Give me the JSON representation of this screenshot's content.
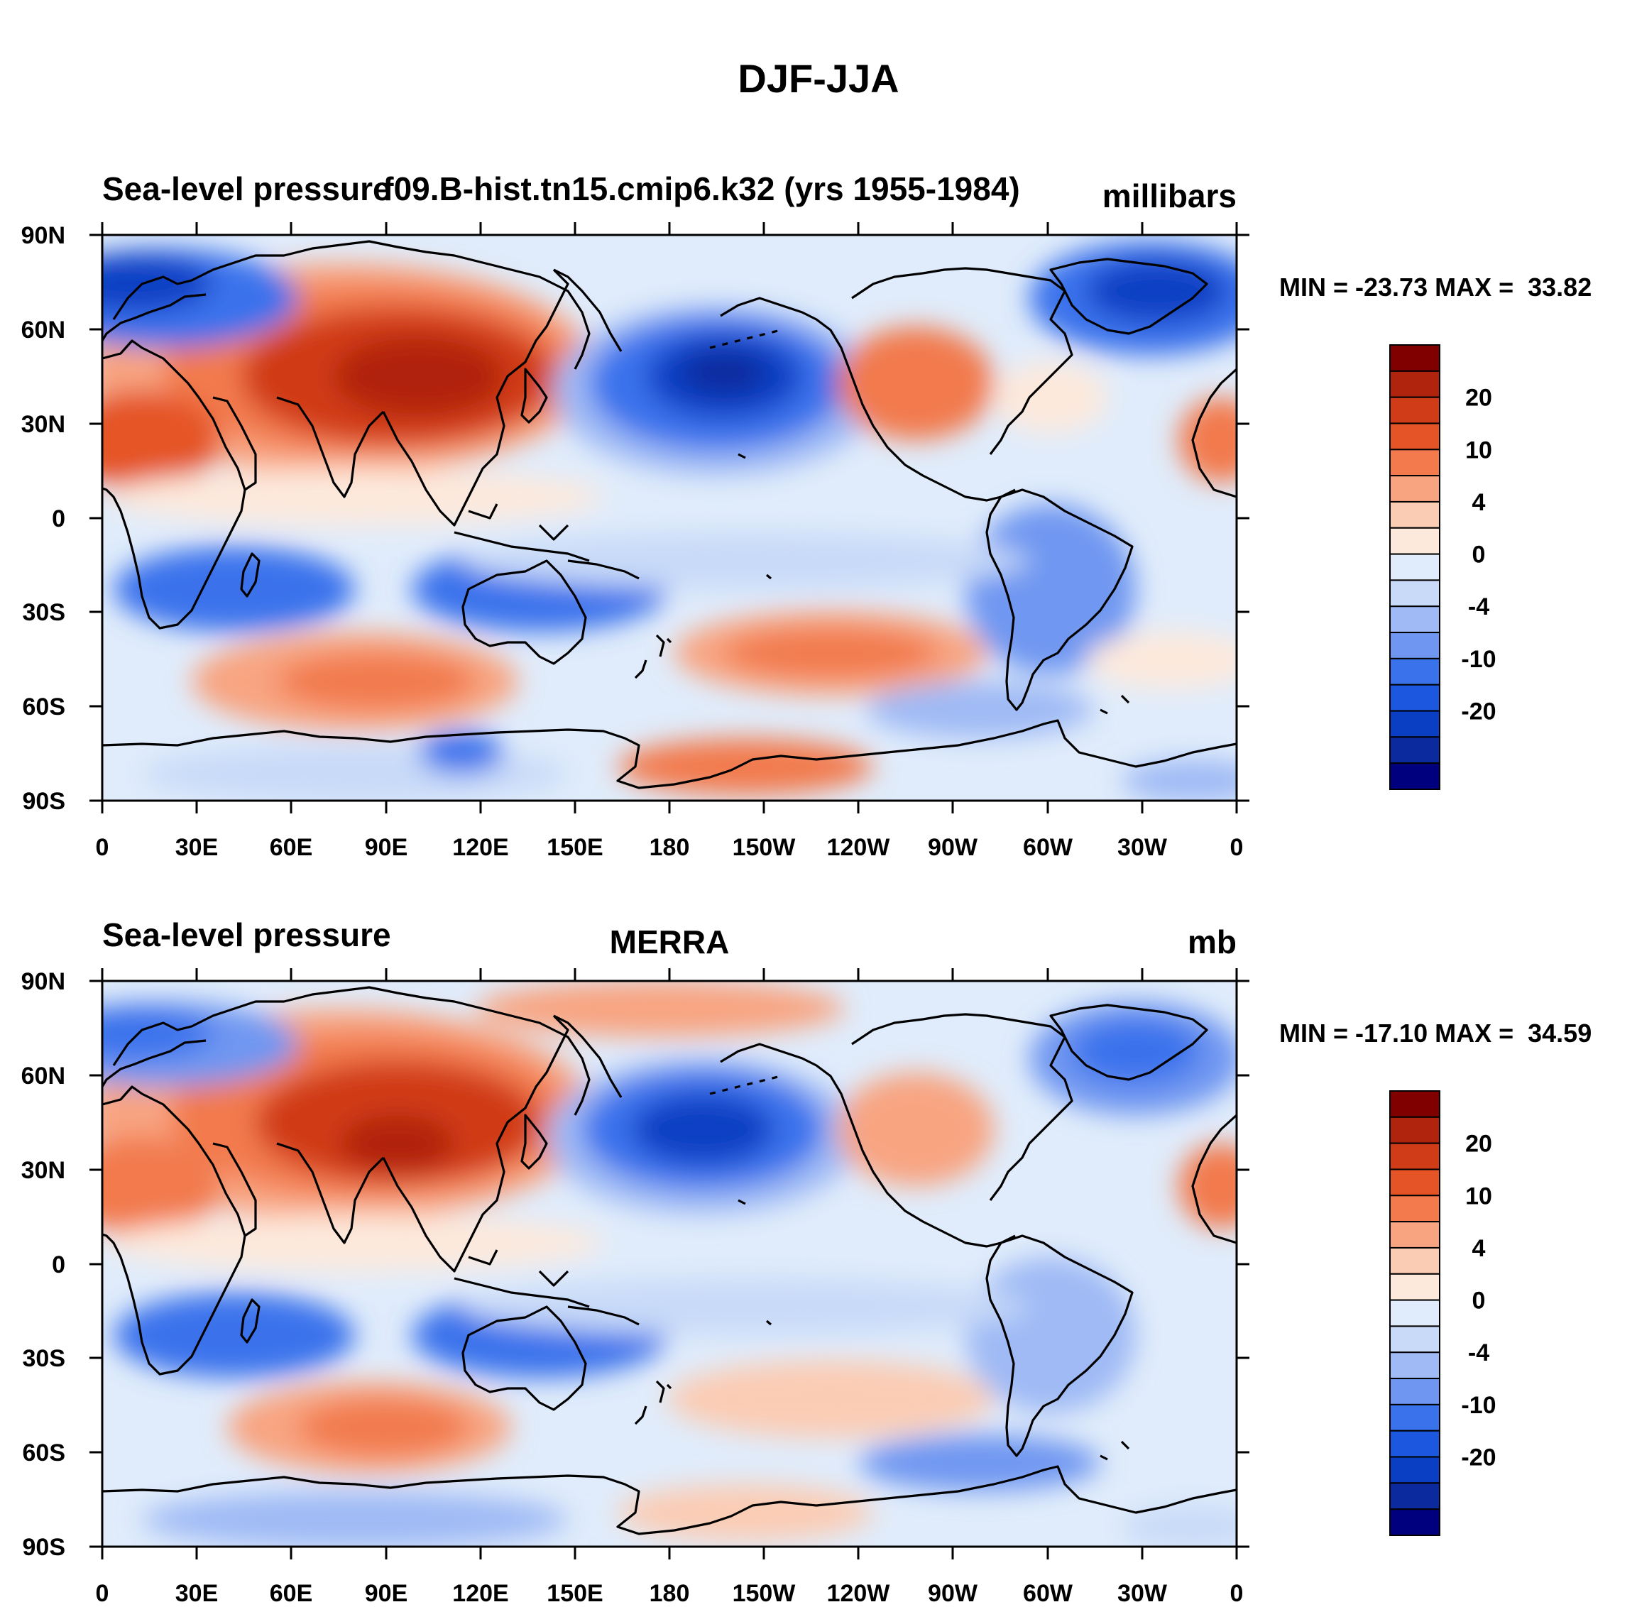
{
  "figure": {
    "title": "DJF-JJA",
    "colors": {
      "levels": [
        "#00007f",
        "#0b2a9e",
        "#0a3fc4",
        "#1c57e0",
        "#3a72ec",
        "#6f97f1",
        "#9fbaf5",
        "#c8daf8",
        "#e0ecfb",
        "#fde9dc",
        "#fbccb4",
        "#f8a481",
        "#f27a4d",
        "#e55427",
        "#d03b18",
        "#b0240d",
        "#800000"
      ],
      "coast": "#000000"
    },
    "panels": [
      {
        "left_title": "Sea-level pressure",
        "center_title": "f09.B-hist.tn15.cmip6.k32 (yrs 1955-1984)",
        "units": "millibars",
        "stats": "MIN = -23.73 MAX =  33.82"
      },
      {
        "left_title": "Sea-level pressure",
        "center_title": "MERRA",
        "units": "mb",
        "stats": "MIN = -17.10 MAX =  34.59"
      }
    ],
    "lat_labels": [
      "90N",
      "60N",
      "30N",
      "0",
      "30S",
      "60S",
      "90S"
    ],
    "lon_labels": [
      "0",
      "30E",
      "60E",
      "90E",
      "120E",
      "150E",
      "180",
      "150W",
      "120W",
      "90W",
      "60W",
      "30W",
      "0"
    ],
    "colorbar_labels": [
      "20",
      "10",
      "4",
      "0",
      "-4",
      "-10",
      "-20"
    ]
  },
  "map_data": {
    "type": "contour",
    "variable": "Sea-level pressure difference (DJF minus JJA)",
    "projection": "cylindrical equidistant",
    "lon_range": [
      0,
      360
    ],
    "lat_range": [
      -90,
      90
    ],
    "contour_levels": [
      -25,
      -20,
      -15,
      -10,
      -8,
      -6,
      -4,
      -2,
      0,
      2,
      4,
      6,
      8,
      10,
      15,
      20,
      25
    ]
  }
}
